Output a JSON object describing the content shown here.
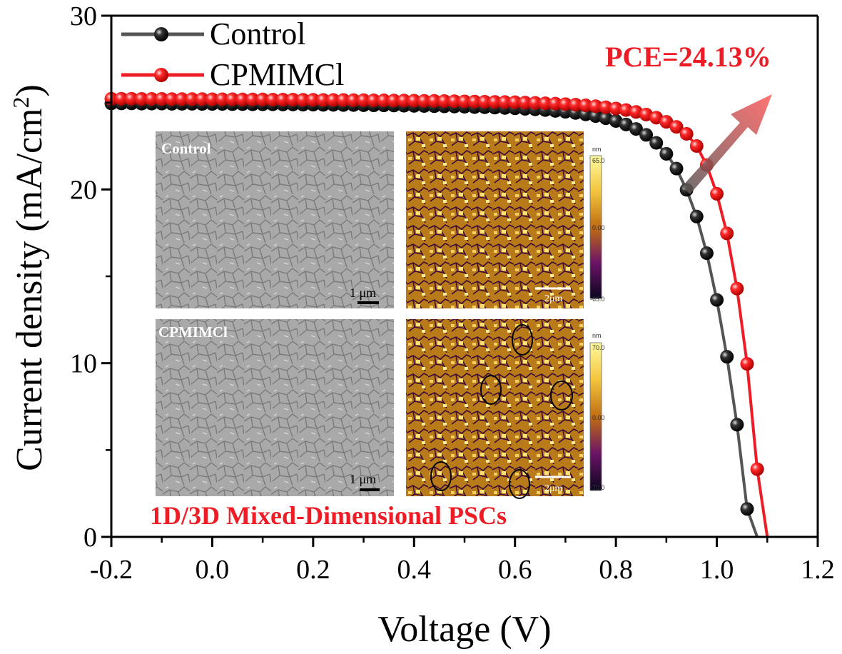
{
  "chart_data": {
    "type": "line",
    "xlabel": "Voltage (V)",
    "ylabel": "Current density (mA/cm",
    "ylabel_sup": "2",
    "ylabel_close": ")",
    "xlim": [
      -0.2,
      1.2
    ],
    "ylim": [
      0,
      30
    ],
    "x_ticks": [
      "-0.2",
      "0.0",
      "0.2",
      "0.4",
      "0.6",
      "0.8",
      "1.0",
      "1.2"
    ],
    "y_ticks": [
      "0",
      "10",
      "20",
      "30"
    ],
    "legend_position": "top-left",
    "series": [
      {
        "name": "Control",
        "color": "#000000",
        "line_color": "#555555",
        "x": [
          -0.2,
          -0.18,
          -0.16,
          -0.14,
          -0.12,
          -0.1,
          -0.08,
          -0.06,
          -0.04,
          -0.02,
          0.0,
          0.02,
          0.04,
          0.06,
          0.08,
          0.1,
          0.12,
          0.14,
          0.16,
          0.18,
          0.2,
          0.22,
          0.24,
          0.26,
          0.28,
          0.3,
          0.32,
          0.34,
          0.36,
          0.38,
          0.4,
          0.42,
          0.44,
          0.46,
          0.48,
          0.5,
          0.52,
          0.54,
          0.56,
          0.58,
          0.6,
          0.62,
          0.64,
          0.66,
          0.68,
          0.7,
          0.72,
          0.74,
          0.76,
          0.78,
          0.8,
          0.82,
          0.84,
          0.86,
          0.88,
          0.9,
          0.92,
          0.94,
          0.96,
          0.98,
          1.0,
          1.02,
          1.04,
          1.06,
          1.08,
          1.1,
          1.12,
          1.14
        ],
        "y": [
          24.95,
          24.95,
          24.95,
          24.94,
          24.94,
          24.94,
          24.93,
          24.93,
          24.93,
          24.92,
          24.92,
          24.92,
          24.91,
          24.91,
          24.9,
          24.9,
          24.9,
          24.89,
          24.89,
          24.88,
          24.88,
          24.87,
          24.87,
          24.86,
          24.86,
          24.85,
          24.84,
          24.84,
          24.83,
          24.82,
          24.81,
          24.8,
          24.79,
          24.78,
          24.77,
          24.76,
          24.74,
          24.73,
          24.71,
          24.69,
          24.67,
          24.64,
          24.61,
          24.57,
          24.52,
          24.47,
          24.4,
          24.32,
          24.22,
          24.1,
          23.94,
          23.74,
          23.48,
          23.14,
          22.68,
          22.05,
          21.2,
          19.98,
          18.44,
          16.33,
          13.64,
          10.37,
          6.46,
          1.61,
          0,
          0,
          0,
          0
        ]
      },
      {
        "name": "CPMIMCl",
        "color": "#ee1c25",
        "line_color": "#ee1c25",
        "x": [
          -0.2,
          -0.18,
          -0.16,
          -0.14,
          -0.12,
          -0.1,
          -0.08,
          -0.06,
          -0.04,
          -0.02,
          0.0,
          0.02,
          0.04,
          0.06,
          0.08,
          0.1,
          0.12,
          0.14,
          0.16,
          0.18,
          0.2,
          0.22,
          0.24,
          0.26,
          0.28,
          0.3,
          0.32,
          0.34,
          0.36,
          0.38,
          0.4,
          0.42,
          0.44,
          0.46,
          0.48,
          0.5,
          0.52,
          0.54,
          0.56,
          0.58,
          0.6,
          0.62,
          0.64,
          0.66,
          0.68,
          0.7,
          0.72,
          0.74,
          0.76,
          0.78,
          0.8,
          0.82,
          0.84,
          0.86,
          0.88,
          0.9,
          0.92,
          0.94,
          0.96,
          0.98,
          1.0,
          1.02,
          1.04,
          1.06,
          1.08,
          1.1,
          1.12,
          1.14,
          1.16,
          1.18
        ],
        "y": [
          25.22,
          25.22,
          25.22,
          25.21,
          25.21,
          25.21,
          25.2,
          25.2,
          25.2,
          25.2,
          25.19,
          25.19,
          25.19,
          25.18,
          25.18,
          25.18,
          25.17,
          25.17,
          25.17,
          25.16,
          25.16,
          25.15,
          25.15,
          25.15,
          25.14,
          25.14,
          25.13,
          25.13,
          25.12,
          25.12,
          25.11,
          25.1,
          25.1,
          25.09,
          25.08,
          25.07,
          25.06,
          25.05,
          25.04,
          25.03,
          25.02,
          25.0,
          24.98,
          24.96,
          24.94,
          24.91,
          24.88,
          24.84,
          24.79,
          24.73,
          24.66,
          24.57,
          24.46,
          24.31,
          24.13,
          23.89,
          23.6,
          23.2,
          22.5,
          21.4,
          19.75,
          17.47,
          14.29,
          9.96,
          3.9,
          0,
          0,
          0,
          0,
          0
        ]
      }
    ],
    "annotations": {
      "pce": "PCE=24.13%",
      "banner": "1D/3D Mixed-Dimensional PSCs"
    },
    "insets": {
      "sem_top_label": "Control",
      "sem_bottom_label": "CPMIMCl",
      "sem_scale": "1 μm",
      "afm_scale": "2μm",
      "afm_unit": "nm",
      "afm_top_range": [
        "65.0",
        "0.00",
        "-65.0"
      ],
      "afm_bottom_range": [
        "70.0",
        "0.00",
        "-70.0"
      ]
    }
  }
}
